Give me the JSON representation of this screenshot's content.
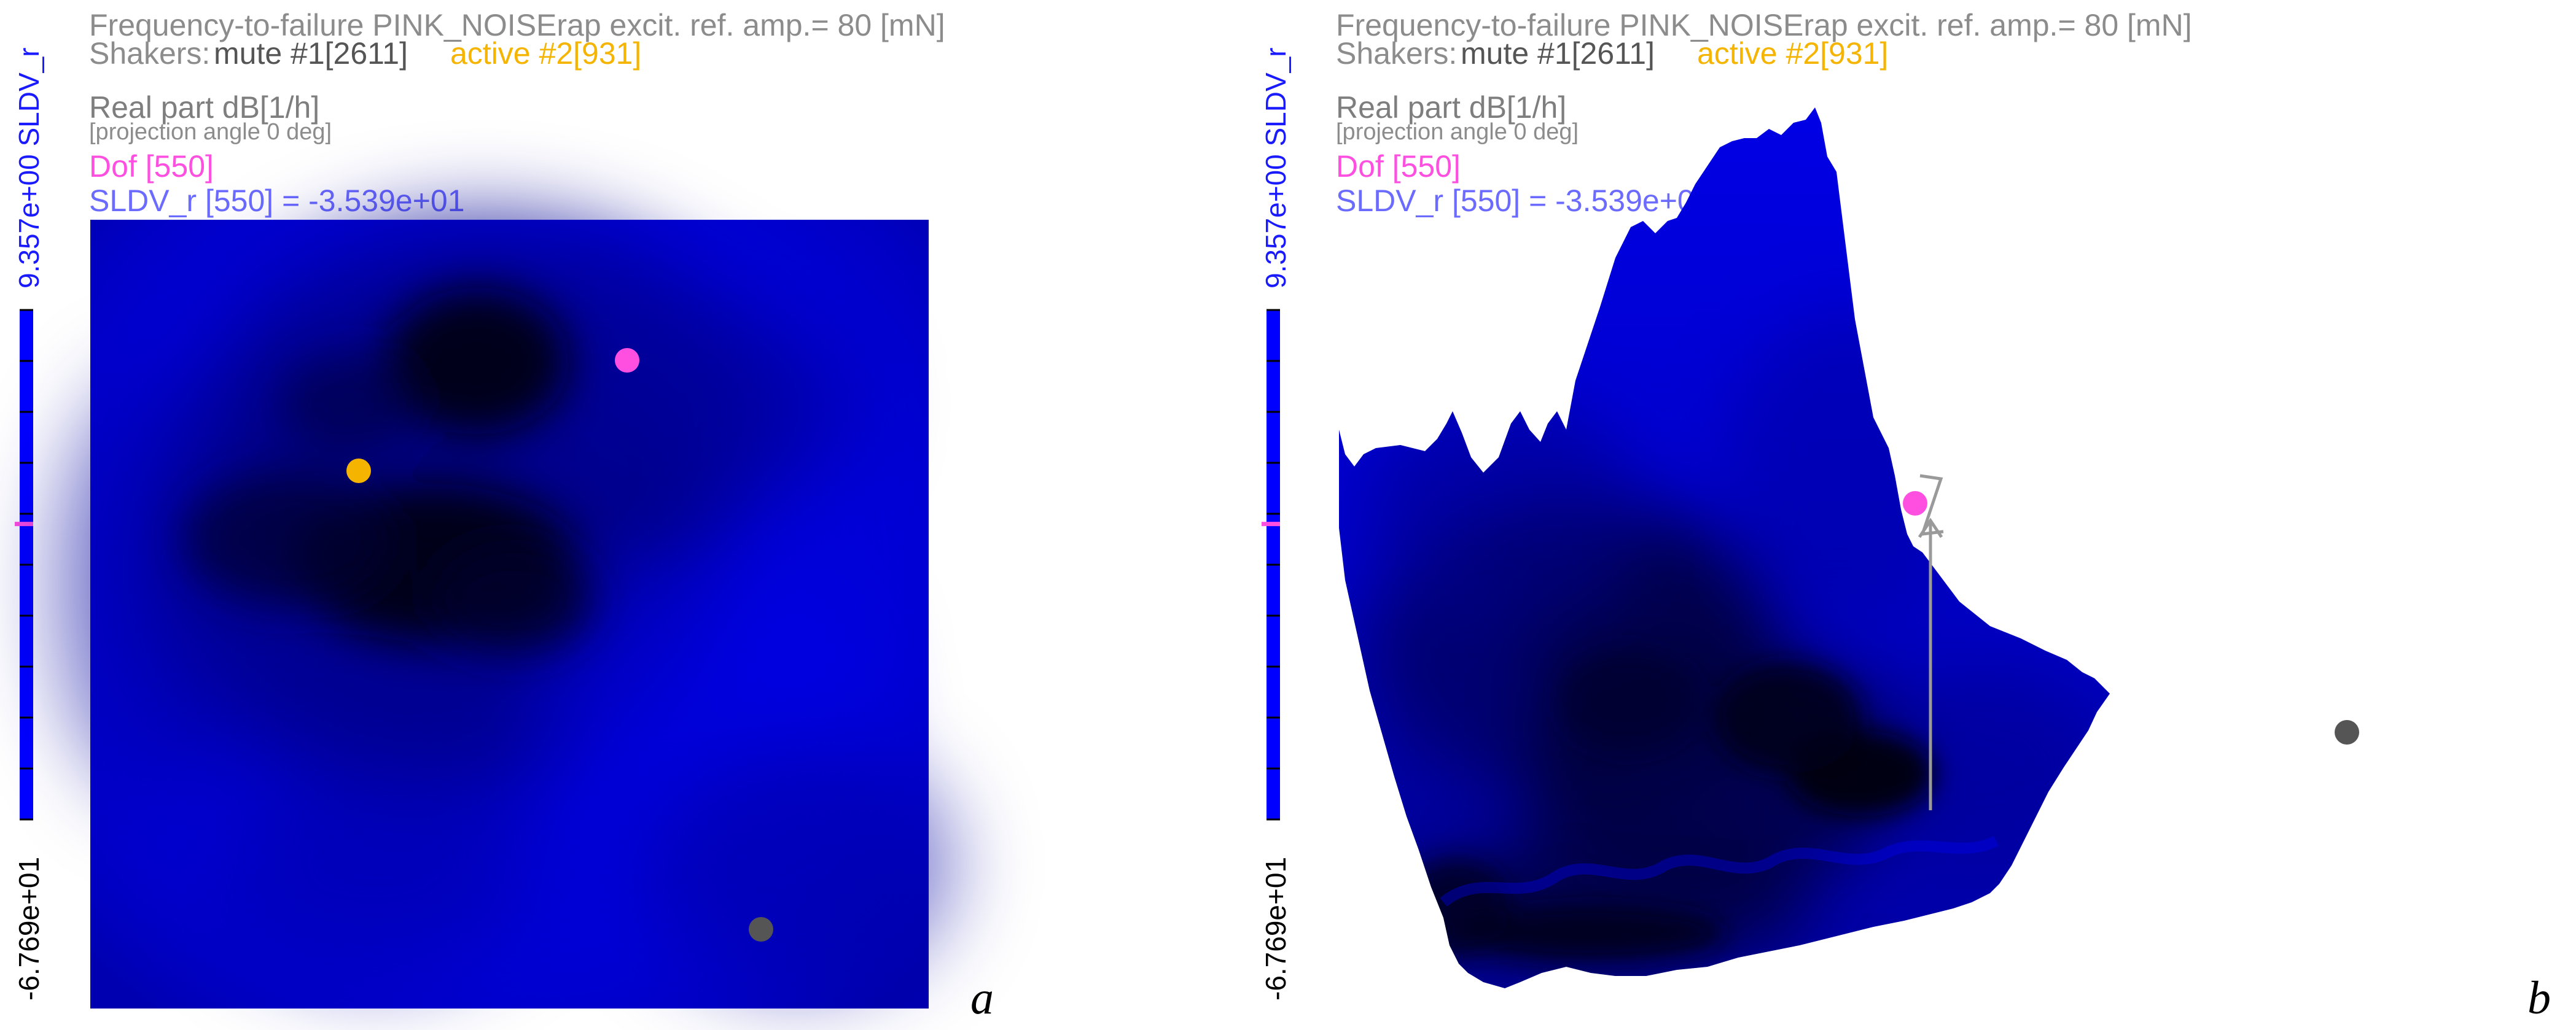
{
  "colors": {
    "surface": "#0000d8",
    "surface_dark": "#000018",
    "title_gray": "#8c8c8c",
    "active_orange": "#f5b400",
    "dof_magenta": "#ff4fe0",
    "sldv_blue": "#6b6bff",
    "colorbar_blue": "#0000ff",
    "marker_gray": "#555555",
    "arrow_gray": "#9a9a9a"
  },
  "panels": [
    {
      "letter": "a",
      "view": "2D projection",
      "title": "Frequency-to-failure PINK_NOISErap excit. ref. amp.= 80 [mN]",
      "shakers_label": "Shakers:",
      "shaker_mute": "mute #1[2611]",
      "shaker_active": "active #2[931]",
      "quantity": "Real part dB[1/h]",
      "projection": "[projection angle 0 deg]",
      "dof": "Dof [550]",
      "sldv_value": "SLDV_r [550] = -3.539e+01",
      "colorbar_max": "9.357e+00 SLDV_r",
      "colorbar_min": "-6.769e+01",
      "marker_level": 0.42,
      "markers": [
        "dof-550",
        "active-shaker-931",
        "mute-shaker-2611"
      ]
    },
    {
      "letter": "b",
      "view": "3D surface",
      "title": "Frequency-to-failure PINK_NOISErap excit. ref. amp.= 80 [mN]",
      "shakers_label": "Shakers:",
      "shaker_mute": "mute #1[2611]",
      "shaker_active": "active #2[931]",
      "quantity": "Real part dB[1/h]",
      "projection": "[projection angle 0 deg]",
      "dof": "Dof [550]",
      "sldv_value": "SLDV_r [550] = -3.539e+01",
      "colorbar_max": "9.357e+00 SLDV_r",
      "colorbar_min": "-6.769e+01",
      "marker_level": 0.42,
      "markers": [
        "dof-550",
        "mute-shaker-2611",
        "z-axis-arrow"
      ]
    }
  ]
}
